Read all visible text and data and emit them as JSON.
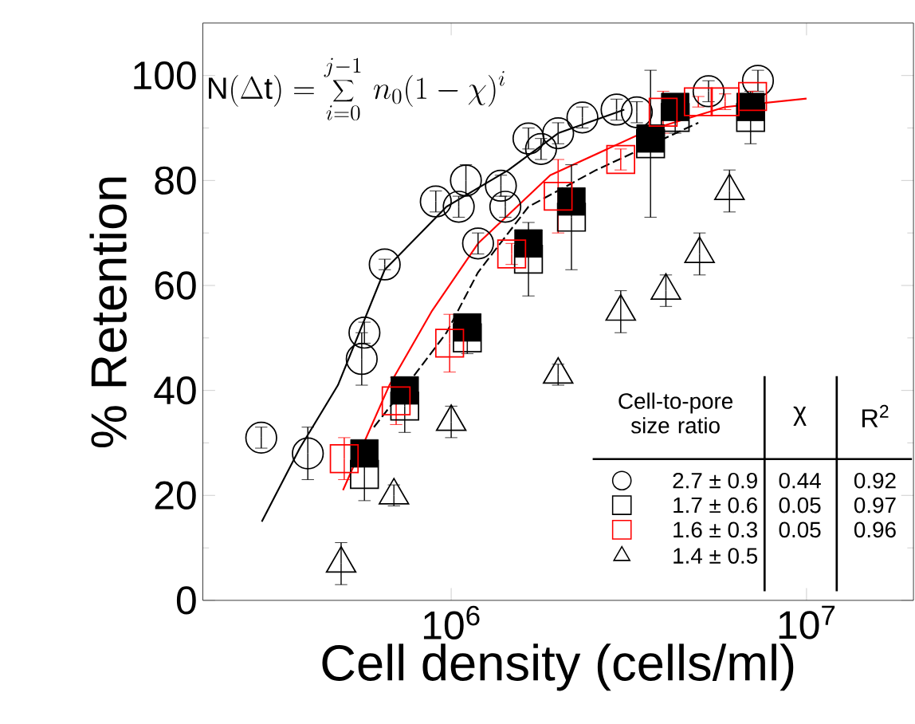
{
  "chart_data": {
    "type": "scatter",
    "xlabel": "Cell density (cells/ml)",
    "ylabel": "% Retention",
    "log": "x",
    "xlim": [
      200000,
      20000000
    ],
    "ylim": [
      0,
      110
    ],
    "xticks": [
      {
        "value": 1000000,
        "label": "10$^{6}$"
      },
      {
        "value": 10000000,
        "label": "10$^{7}$"
      }
    ],
    "yticks": [
      0,
      20,
      40,
      60,
      80,
      100
    ],
    "legend": "bottom right",
    "legend_title": "Cell-to-pore size ratio",
    "annotations": [
      "\\mathrm{N}(\\Delta \\mathrm{t})=\\sum_{i=0}^{j-1}\\, n_0(1-\\chi)^i",
      "χ",
      "R$^{2}$",
      "0.44",
      "0.92",
      "0.05",
      "0.97",
      "0.05",
      "0.96"
    ],
    "series": [
      {
        "type": "line",
        "color": "#000000",
        "marker": "none",
        "line_style": "solid",
        "x": [
          293000,
          375000,
          480000,
          650000,
          970000,
          1450000,
          2000000,
          3070000
        ],
        "values": [
          15,
          29,
          41,
          63,
          75,
          82,
          89,
          93.5
        ]
      },
      {
        "type": "line",
        "color": "#ff0000",
        "marker": "none",
        "line_style": "solid",
        "x": [
          496000,
          670000,
          880000,
          1190000,
          1900000,
          3570000,
          5900000,
          10000000
        ],
        "values": [
          21,
          41,
          55,
          68,
          81,
          89.5,
          94,
          95.6
        ]
      },
      {
        "type": "line",
        "color": "#000000",
        "marker": "none",
        "line_style": "dashed",
        "x": [
          606000,
          770000,
          970000,
          1190000,
          1650000,
          2560000,
          4960000
        ],
        "values": [
          33,
          42,
          51,
          62.5,
          75,
          82,
          91
        ]
      },
      {
        "name": "2.7 ± 0.9",
        "color": "#000000",
        "marker": "circle",
        "x": [
          292000,
          395000,
          560000,
          570000,
          650000,
          905000,
          1050000,
          1100000,
          1190000,
          1380000,
          1420000,
          1650000,
          1790000,
          2000000,
          2340000,
          2920000,
          3330000,
          5300000,
          7300000
        ],
        "values": [
          31,
          28,
          46,
          51,
          64,
          76,
          75,
          80,
          68,
          79,
          75,
          88,
          86,
          89,
          92,
          93.5,
          93,
          97,
          99
        ],
        "errors": [
          2,
          5,
          5,
          2,
          1,
          2,
          2,
          3,
          2,
          2,
          2,
          2,
          2,
          2,
          2,
          2,
          2,
          2,
          2
        ]
      },
      {
        "name": "1.7 ± 0.6",
        "color": "#000000",
        "marker": "square",
        "x": [
          570000,
          740000,
          1110000,
          1650000,
          2180000,
          3640000,
          4270000,
          6960000
        ],
        "values": [
          24,
          37,
          50,
          65,
          73,
          87,
          92,
          92
        ],
        "errors": [
          5,
          5,
          3,
          7,
          10,
          14,
          3,
          5
        ]
      },
      {
        "color": "#000000",
        "marker": "square",
        "x": [
          570000,
          740000,
          1110000,
          1650000,
          2180000,
          3640000,
          4270000,
          6960000
        ],
        "values": [
          28,
          40,
          52,
          68,
          76,
          88,
          94,
          94
        ]
      },
      {
        "name": "1.6 ± 0.3",
        "color": "#ff0000",
        "marker": "square",
        "x": [
          500000,
          700000,
          990000,
          1480000,
          2000000,
          3000000,
          3950000,
          4960000,
          5900000,
          7050000
        ],
        "values": [
          27,
          38,
          49,
          66,
          77,
          84,
          93,
          95,
          95,
          96
        ],
        "errors": [
          4,
          4.5,
          5.5,
          2,
          7,
          2,
          4,
          1,
          1.5,
          1
        ]
      },
      {
        "name": "1.4 ± 0.5",
        "color": "#000000",
        "marker": "triangle",
        "x": [
          490000,
          690000,
          1000000,
          2000000,
          3000000,
          4020000,
          5000000,
          6070000
        ],
        "values": [
          7,
          20,
          34,
          43,
          55,
          59,
          66,
          78
        ],
        "errors": [
          4,
          2,
          3,
          2,
          4,
          3,
          4,
          4
        ]
      }
    ]
  }
}
